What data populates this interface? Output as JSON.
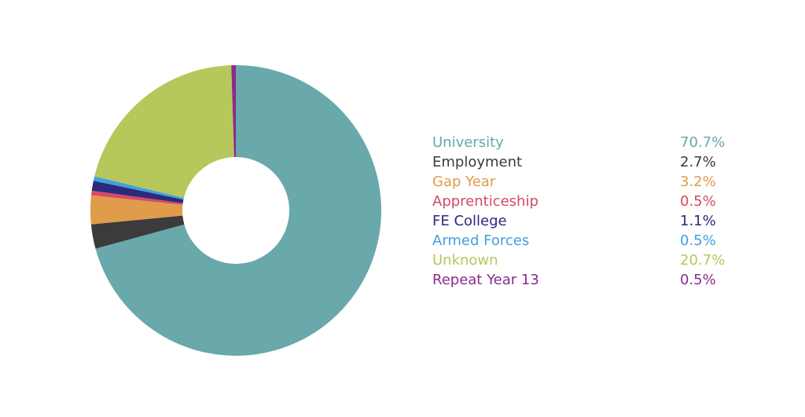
{
  "chart_data": {
    "type": "donut",
    "categories": [
      "University",
      "Employment",
      "Gap Year",
      "Apprenticeship",
      "FE College",
      "Armed Forces",
      "Unknown",
      "Repeat Year 13"
    ],
    "values": [
      70.7,
      2.7,
      3.2,
      0.5,
      1.1,
      0.5,
      20.7,
      0.5
    ],
    "value_labels": [
      "70.7%",
      "2.7%",
      "3.2%",
      "0.5%",
      "1.1%",
      "0.5%",
      "20.7%",
      "0.5%"
    ],
    "colors": [
      "#69a8ab",
      "#3b3b3b",
      "#e09b4b",
      "#d64a63",
      "#2c2a7c",
      "#41a1dc",
      "#b6c75b",
      "#8b2b8c"
    ],
    "legend": "right"
  }
}
